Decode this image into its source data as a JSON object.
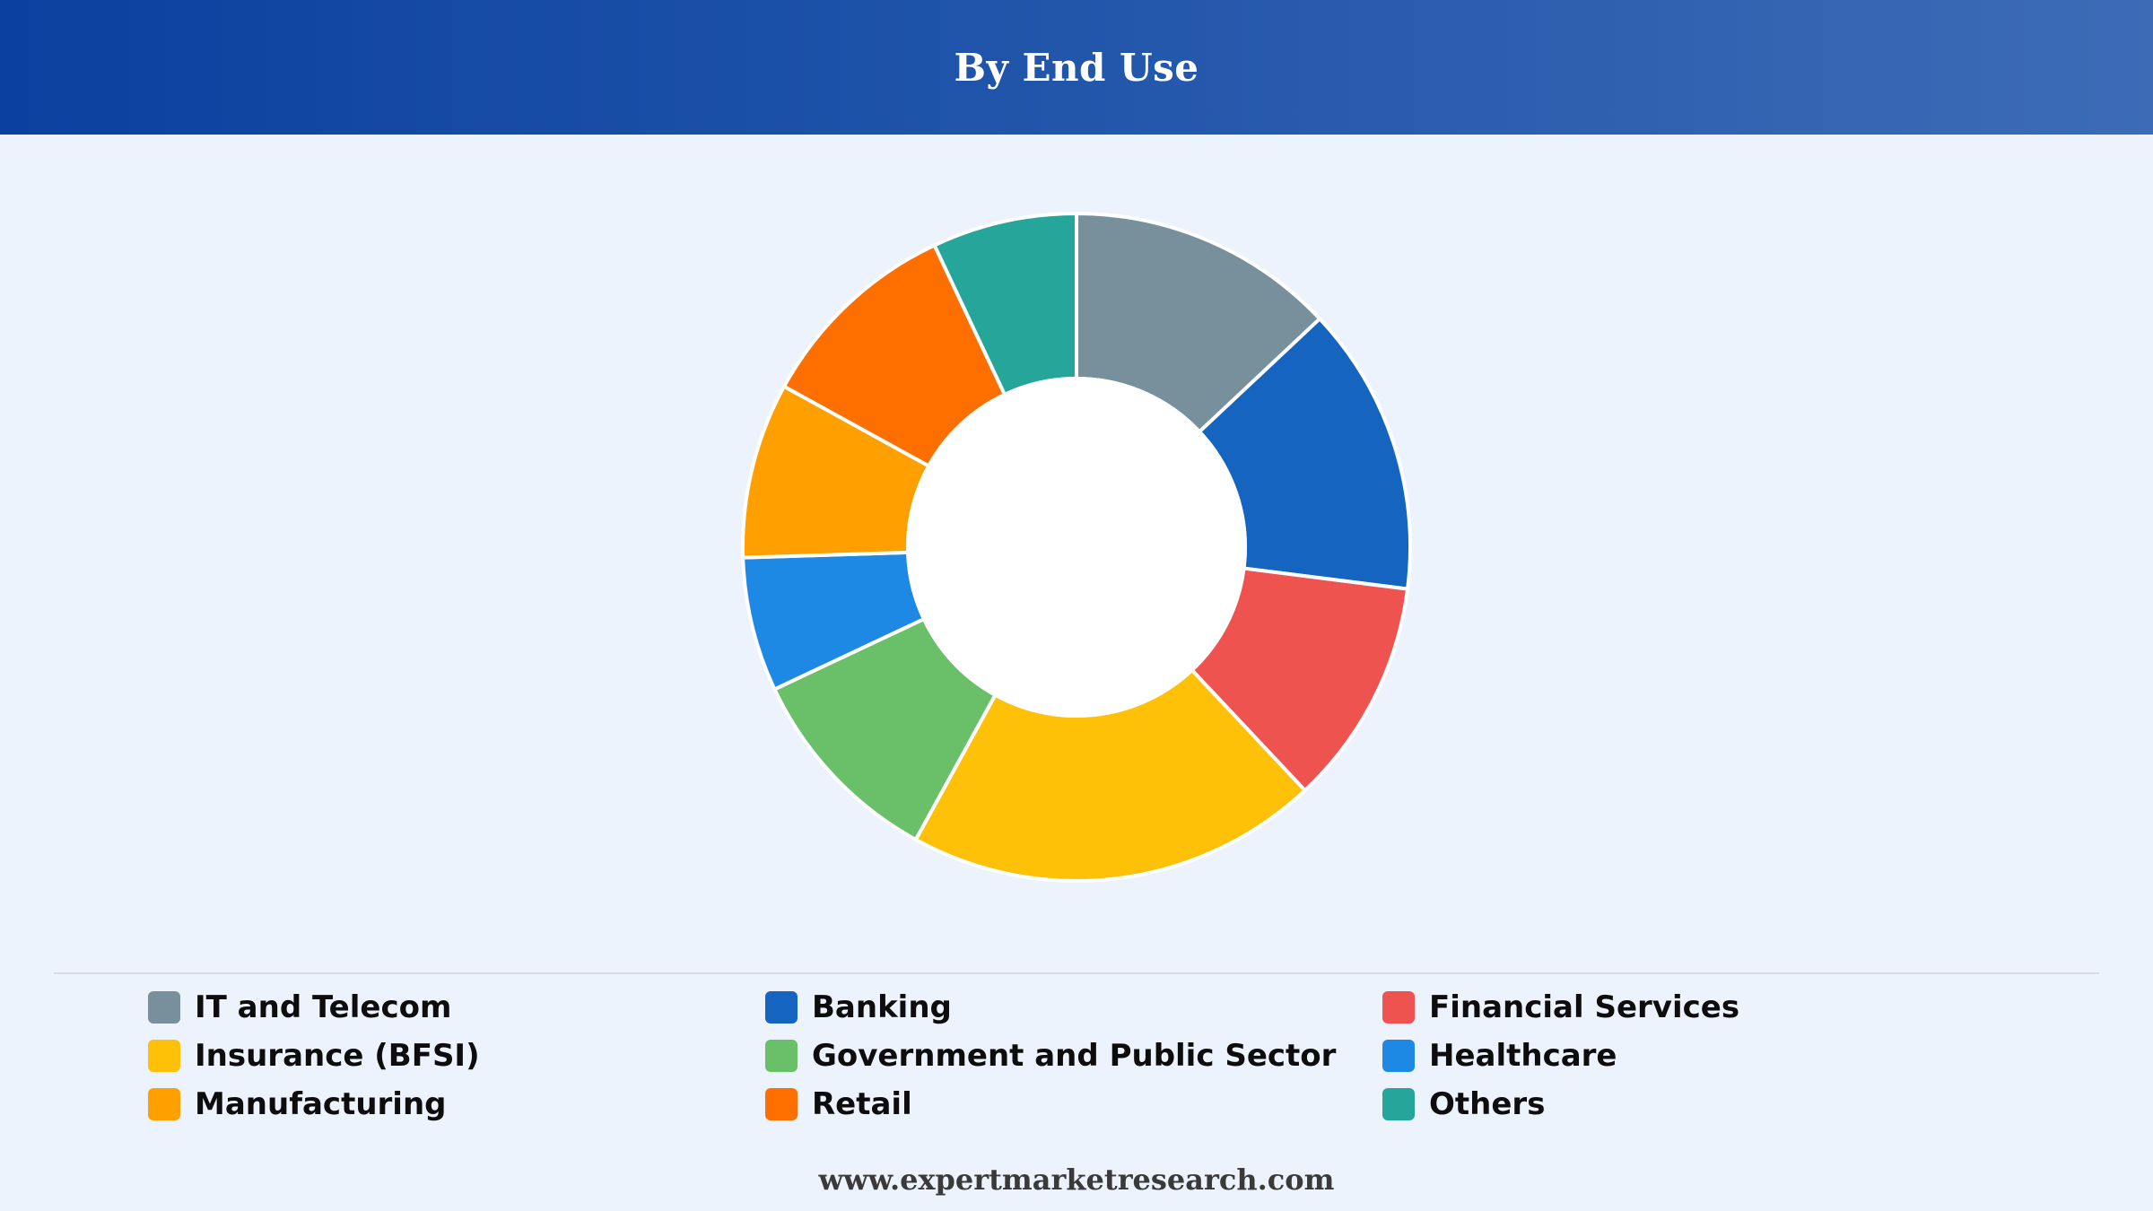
{
  "header": {
    "title": "By End Use"
  },
  "chart_data": {
    "type": "pie",
    "title": "By End Use",
    "categories": [
      "IT and Telecom",
      "Banking",
      "Financial Services",
      "Insurance (BFSI)",
      "Government and Public Sector",
      "Healthcare",
      "Manufacturing",
      "Retail",
      "Others"
    ],
    "values": [
      13,
      14,
      11,
      20,
      10,
      6.5,
      8.5,
      10,
      7
    ],
    "colors": [
      "#78909c",
      "#1565c0",
      "#ef5350",
      "#ffc107",
      "#6abf69",
      "#1e88e5",
      "#ffa000",
      "#ff6f00",
      "#26a69a"
    ],
    "donut": true,
    "legend_position": "bottom"
  },
  "legend": {
    "items": [
      {
        "label": "IT and Telecom",
        "color": "#78909c"
      },
      {
        "label": "Banking",
        "color": "#1565c0"
      },
      {
        "label": "Financial Services",
        "color": "#ef5350"
      },
      {
        "label": "Insurance (BFSI)",
        "color": "#ffc107"
      },
      {
        "label": "Government and Public Sector",
        "color": "#6abf69"
      },
      {
        "label": "Healthcare",
        "color": "#1e88e5"
      },
      {
        "label": "Manufacturing",
        "color": "#ffa000"
      },
      {
        "label": "Retail",
        "color": "#ff6f00"
      },
      {
        "label": "Others",
        "color": "#26a69a"
      }
    ]
  },
  "footer": {
    "text": "www.expertmarketresearch.com"
  }
}
